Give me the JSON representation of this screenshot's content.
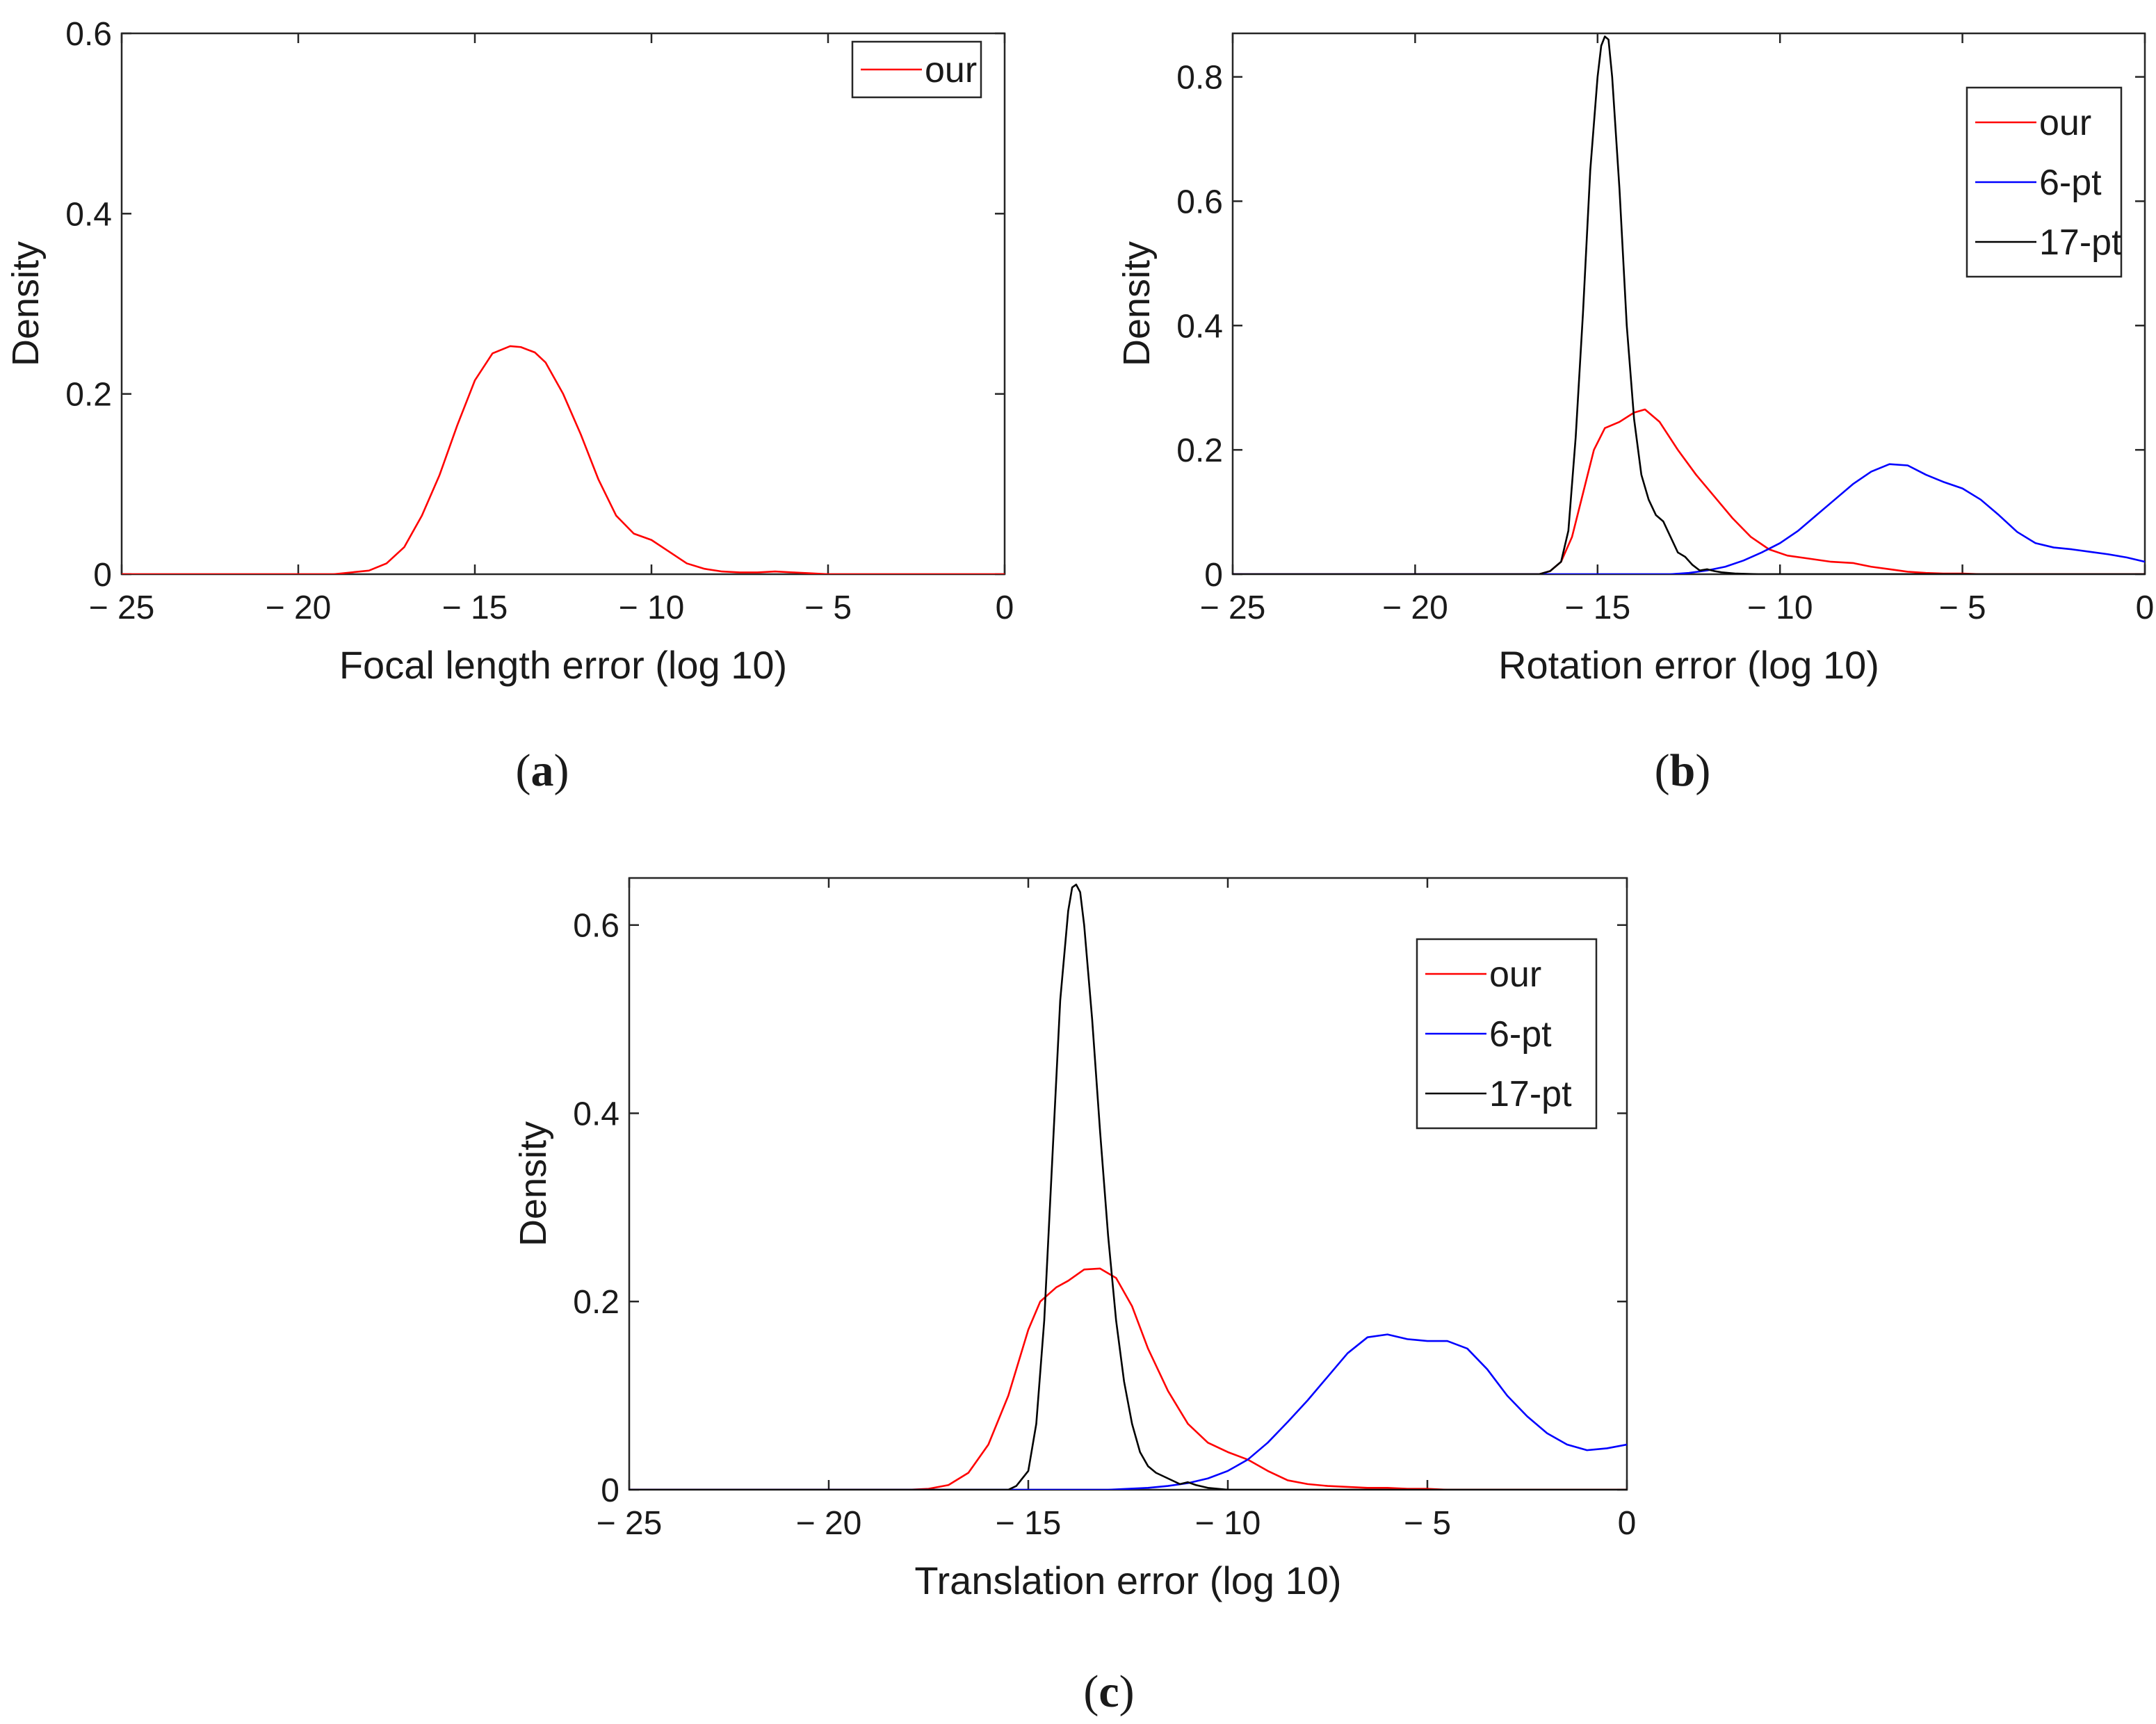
{
  "figure": {
    "panel_labels": [
      "(a)",
      "(b)",
      "(c)"
    ]
  },
  "chart_data": [
    {
      "id": "a",
      "type": "line",
      "panel_label": "(a)",
      "title": "",
      "xlabel": "Focal length error (log 10)",
      "ylabel": "Density",
      "xlim": [
        -25,
        0
      ],
      "ylim": [
        0,
        0.6
      ],
      "xticks": [
        -25,
        -20,
        -15,
        -10,
        -5,
        0
      ],
      "xtick_labels": [
        "− 25",
        "− 20",
        "− 15",
        "− 10",
        "− 5",
        "0"
      ],
      "yticks": [
        0,
        0.2,
        0.4,
        0.6
      ],
      "ytick_labels": [
        "0",
        "0.2",
        "0.4",
        "0.6"
      ],
      "grid": false,
      "legend_position": "top-right",
      "series": [
        {
          "name": "our",
          "color": "#ff0000",
          "x": [
            -25,
            -19,
            -18,
            -17.5,
            -17,
            -16.5,
            -16,
            -15.5,
            -15,
            -14.5,
            -14,
            -13.7,
            -13.3,
            -13,
            -12.5,
            -12,
            -11.5,
            -11,
            -10.5,
            -10,
            -9.5,
            -9,
            -8.5,
            -8,
            -7.5,
            -7,
            -6.5,
            -6,
            -5.5,
            -5,
            0
          ],
          "y": [
            0,
            0,
            0.004,
            0.012,
            0.03,
            0.065,
            0.11,
            0.165,
            0.215,
            0.245,
            0.253,
            0.252,
            0.246,
            0.235,
            0.2,
            0.155,
            0.105,
            0.065,
            0.045,
            0.038,
            0.025,
            0.012,
            0.006,
            0.003,
            0.002,
            0.002,
            0.003,
            0.002,
            0.001,
            0,
            0
          ]
        }
      ]
    },
    {
      "id": "b",
      "type": "line",
      "panel_label": "(b)",
      "title": "",
      "xlabel": "Rotation error (log 10)",
      "ylabel": "Density",
      "xlim": [
        -25,
        0
      ],
      "ylim": [
        0,
        0.87
      ],
      "xticks": [
        -25,
        -20,
        -15,
        -10,
        -5,
        0
      ],
      "xtick_labels": [
        "− 25",
        "− 20",
        "− 15",
        "− 10",
        "− 5",
        "0"
      ],
      "yticks": [
        0,
        0.2,
        0.4,
        0.6,
        0.8
      ],
      "ytick_labels": [
        "0",
        "0.2",
        "0.4",
        "0.6",
        "0.8"
      ],
      "grid": false,
      "legend_position": "top-right",
      "series": [
        {
          "name": "our",
          "color": "#ff0000",
          "x": [
            -25,
            -16.6,
            -16.3,
            -16,
            -15.7,
            -15.4,
            -15.1,
            -14.8,
            -14.4,
            -14,
            -13.7,
            -13.3,
            -12.8,
            -12.3,
            -11.8,
            -11.3,
            -10.8,
            -10.3,
            -9.8,
            -9.2,
            -8.6,
            -8,
            -7.5,
            -7,
            -6.5,
            -6,
            -5.5,
            -5,
            -4.5,
            0
          ],
          "y": [
            0,
            0,
            0.005,
            0.02,
            0.06,
            0.13,
            0.2,
            0.235,
            0.245,
            0.26,
            0.265,
            0.245,
            0.2,
            0.16,
            0.125,
            0.09,
            0.06,
            0.04,
            0.03,
            0.025,
            0.02,
            0.018,
            0.012,
            0.008,
            0.004,
            0.002,
            0.001,
            0.001,
            0,
            0
          ]
        },
        {
          "name": "6-pt",
          "color": "#0000ff",
          "x": [
            -25,
            -15,
            -13,
            -12.5,
            -12,
            -11.5,
            -11,
            -10.5,
            -10,
            -9.5,
            -9,
            -8.5,
            -8,
            -7.5,
            -7,
            -6.5,
            -6,
            -5.5,
            -5,
            -4.5,
            -4,
            -3.5,
            -3,
            -2.5,
            -2,
            -1.5,
            -1,
            -0.5,
            0
          ],
          "y": [
            0,
            0,
            0,
            0.002,
            0.006,
            0.012,
            0.022,
            0.035,
            0.05,
            0.07,
            0.095,
            0.12,
            0.145,
            0.165,
            0.177,
            0.175,
            0.16,
            0.148,
            0.138,
            0.12,
            0.095,
            0.068,
            0.05,
            0.043,
            0.04,
            0.036,
            0.032,
            0.027,
            0.02
          ]
        },
        {
          "name": "17-pt",
          "color": "#000000",
          "x": [
            -25,
            -16.6,
            -16.3,
            -16,
            -15.8,
            -15.6,
            -15.4,
            -15.2,
            -15,
            -14.9,
            -14.8,
            -14.7,
            -14.6,
            -14.4,
            -14.2,
            -14,
            -13.8,
            -13.6,
            -13.4,
            -13.2,
            -13,
            -12.8,
            -12.6,
            -12.4,
            -12.2,
            -12,
            -11.8,
            -11.6,
            -11.2,
            -10.6,
            0
          ],
          "y": [
            0,
            0,
            0.005,
            0.02,
            0.07,
            0.22,
            0.42,
            0.65,
            0.8,
            0.85,
            0.865,
            0.86,
            0.8,
            0.62,
            0.4,
            0.25,
            0.16,
            0.12,
            0.095,
            0.085,
            0.06,
            0.035,
            0.028,
            0.015,
            0.006,
            0.008,
            0.005,
            0.003,
            0.001,
            0,
            0
          ]
        }
      ]
    },
    {
      "id": "c",
      "type": "line",
      "panel_label": "(c)",
      "title": "",
      "xlabel": "Translation error (log 10)",
      "ylabel": "Density",
      "xlim": [
        -25,
        0
      ],
      "ylim": [
        0,
        0.65
      ],
      "xticks": [
        -25,
        -20,
        -15,
        -10,
        -5,
        0
      ],
      "xtick_labels": [
        "− 25",
        "− 20",
        "− 15",
        "− 10",
        "− 5",
        "0"
      ],
      "yticks": [
        0,
        0.2,
        0.4,
        0.6
      ],
      "ytick_labels": [
        "0",
        "0.2",
        "0.4",
        "0.6"
      ],
      "grid": false,
      "legend_position": "top-right",
      "series": [
        {
          "name": "our",
          "color": "#ff0000",
          "x": [
            -25,
            -18,
            -17.5,
            -17,
            -16.5,
            -16,
            -15.5,
            -15,
            -14.7,
            -14.3,
            -14,
            -13.6,
            -13.2,
            -12.8,
            -12.4,
            -12,
            -11.5,
            -11,
            -10.5,
            -10,
            -9.5,
            -9,
            -8.5,
            -8,
            -7.5,
            -7,
            -6.5,
            -6,
            -5.5,
            -5,
            -4.5,
            0
          ],
          "y": [
            0,
            0,
            0.001,
            0.005,
            0.018,
            0.048,
            0.1,
            0.17,
            0.2,
            0.215,
            0.222,
            0.234,
            0.235,
            0.225,
            0.195,
            0.15,
            0.105,
            0.07,
            0.05,
            0.04,
            0.032,
            0.02,
            0.01,
            0.006,
            0.004,
            0.003,
            0.002,
            0.002,
            0.001,
            0.001,
            0,
            0
          ]
        },
        {
          "name": "6-pt",
          "color": "#0000ff",
          "x": [
            -25,
            -13,
            -12.5,
            -12,
            -11.5,
            -11,
            -10.5,
            -10,
            -9.5,
            -9,
            -8.5,
            -8,
            -7.5,
            -7,
            -6.5,
            -6,
            -5.5,
            -5,
            -4.5,
            -4,
            -3.5,
            -3,
            -2.5,
            -2,
            -1.5,
            -1,
            -0.5,
            0
          ],
          "y": [
            0,
            0,
            0.001,
            0.002,
            0.004,
            0.007,
            0.012,
            0.02,
            0.032,
            0.05,
            0.072,
            0.095,
            0.12,
            0.145,
            0.162,
            0.165,
            0.16,
            0.158,
            0.158,
            0.15,
            0.128,
            0.1,
            0.078,
            0.06,
            0.048,
            0.042,
            0.044,
            0.048
          ]
        },
        {
          "name": "17-pt",
          "color": "#000000",
          "x": [
            -25,
            -15.5,
            -15.3,
            -15,
            -14.8,
            -14.6,
            -14.4,
            -14.2,
            -14,
            -13.9,
            -13.8,
            -13.7,
            -13.6,
            -13.4,
            -13.2,
            -13,
            -12.8,
            -12.6,
            -12.4,
            -12.2,
            -12,
            -11.8,
            -11.5,
            -11.2,
            -11,
            -10.8,
            -10.5,
            -10,
            0
          ],
          "y": [
            0,
            0,
            0.004,
            0.02,
            0.07,
            0.18,
            0.35,
            0.52,
            0.615,
            0.64,
            0.643,
            0.635,
            0.6,
            0.5,
            0.38,
            0.27,
            0.18,
            0.115,
            0.07,
            0.04,
            0.025,
            0.018,
            0.012,
            0.006,
            0.008,
            0.005,
            0.002,
            0,
            0
          ]
        }
      ]
    }
  ]
}
